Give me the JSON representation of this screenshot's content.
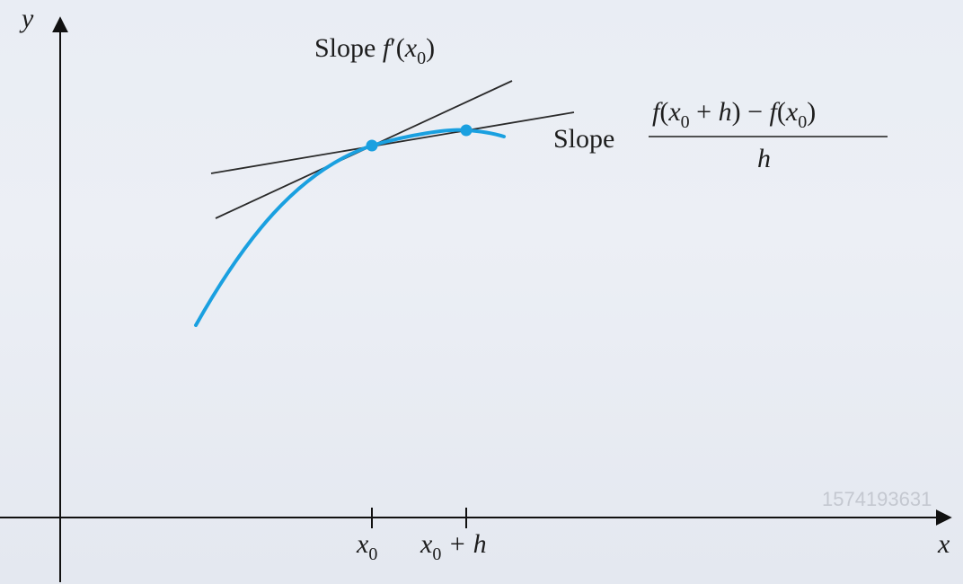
{
  "axes": {
    "x_label": "x",
    "y_label": "y"
  },
  "ticks": {
    "x0_main": "x",
    "x0_sub": "0",
    "x0h_main": "x",
    "x0h_sub": "0",
    "x0h_rest": " + h"
  },
  "tangent_label": {
    "prefix": "Slope ",
    "f": "f",
    "prime_open": "′(",
    "x": "x",
    "sub": "0",
    "close": ")"
  },
  "secant_label": {
    "prefix": "Slope",
    "num_a": "f",
    "num_b": "(",
    "num_x": "x",
    "num_sub": "0",
    "num_c": " + ",
    "num_h": "h",
    "num_d": ") − ",
    "num_f2": "f",
    "num_e": "(",
    "num_x2": "x",
    "num_sub2": "0",
    "num_f": ")",
    "denominator": "h"
  },
  "watermark": "1574193631",
  "colors": {
    "curve": "#1aa0e0",
    "point": "#1aa0e0",
    "line": "#2a2a2a",
    "axis": "#111111"
  }
}
